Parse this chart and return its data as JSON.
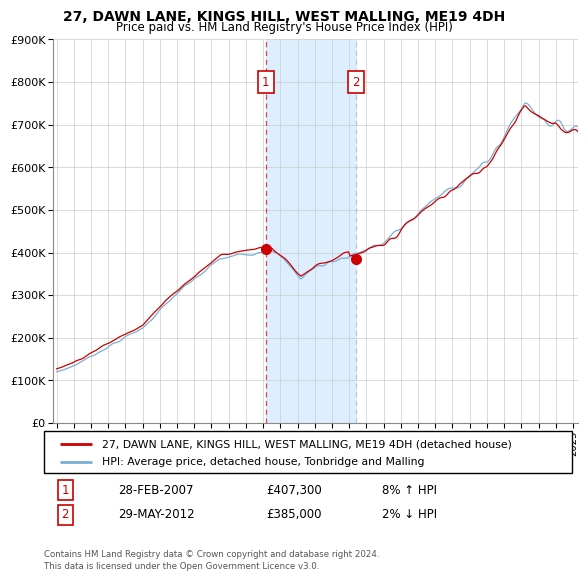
{
  "title": "27, DAWN LANE, KINGS HILL, WEST MALLING, ME19 4DH",
  "subtitle": "Price paid vs. HM Land Registry's House Price Index (HPI)",
  "ylim": [
    0,
    900000
  ],
  "yticks": [
    0,
    100000,
    200000,
    300000,
    400000,
    500000,
    600000,
    700000,
    800000,
    900000
  ],
  "ytick_labels": [
    "£0",
    "£100K",
    "£200K",
    "£300K",
    "£400K",
    "£500K",
    "£600K",
    "£700K",
    "£800K",
    "£900K"
  ],
  "legend_line1": "27, DAWN LANE, KINGS HILL, WEST MALLING, ME19 4DH (detached house)",
  "legend_line2": "HPI: Average price, detached house, Tonbridge and Malling",
  "annotation1_date": "28-FEB-2007",
  "annotation1_price": "£407,300",
  "annotation1_hpi": "8% ↑ HPI",
  "annotation2_date": "29-MAY-2012",
  "annotation2_price": "£385,000",
  "annotation2_hpi": "2% ↓ HPI",
  "footer": "Contains HM Land Registry data © Crown copyright and database right 2024.\nThis data is licensed under the Open Government Licence v3.0.",
  "line1_color": "#cc0000",
  "line2_color": "#7ab0d4",
  "shade_color": "#ddeeff",
  "annot_box_color": "#cc0000",
  "vline1_color": "#cc0000",
  "vline2_color": "#aabbcc",
  "dot_color": "#cc0000",
  "dot1_x_year": 2007.16,
  "dot1_y": 407300,
  "dot2_x_year": 2012.41,
  "dot2_y": 385000,
  "shade_x1": 2007.16,
  "shade_x2": 2012.41,
  "xlim_start": 1994.8,
  "xlim_end": 2025.3
}
